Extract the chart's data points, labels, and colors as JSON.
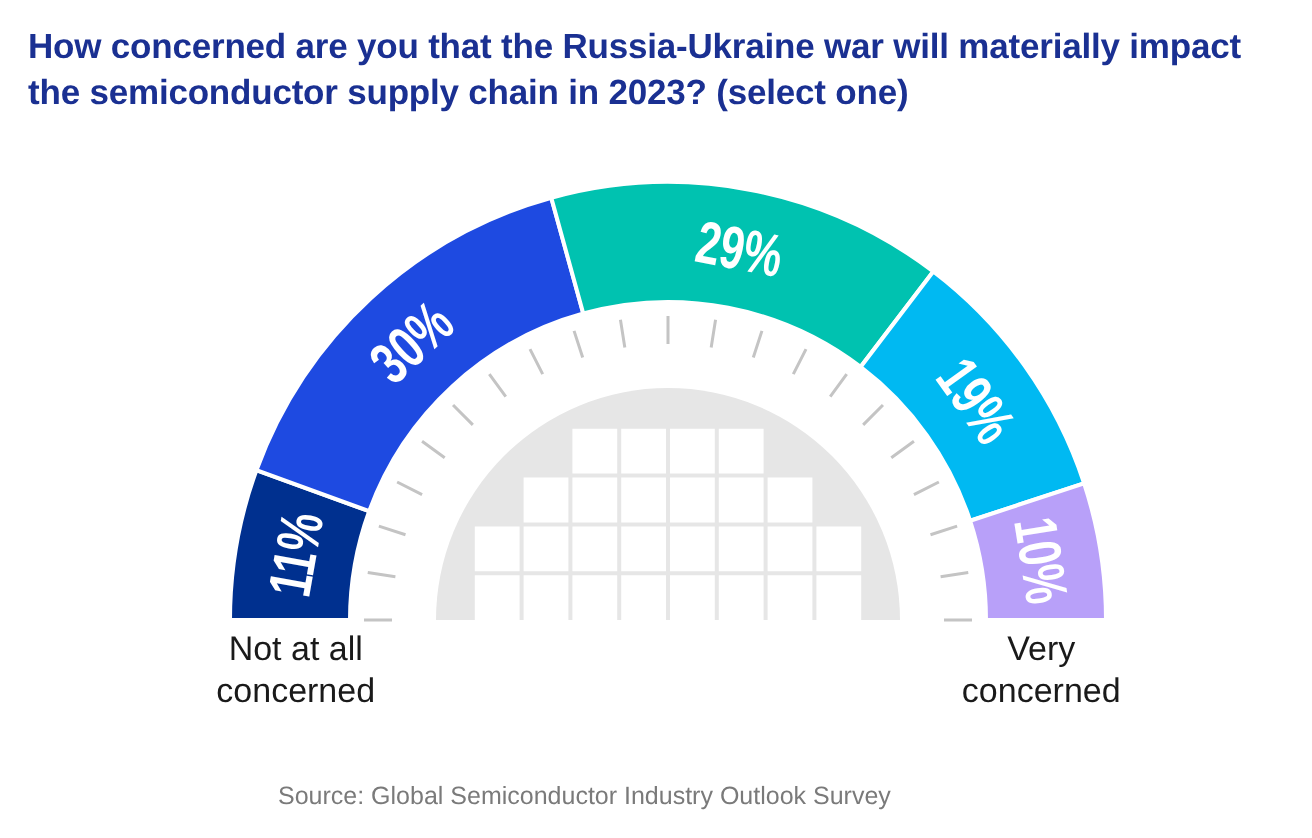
{
  "chart_data": {
    "type": "donut",
    "title": "How concerned are you that the Russia-Ukraine war will materially impact the semiconductor supply chain in 2023? (select one)",
    "categories": [
      "Not at all concerned",
      null,
      null,
      null,
      "Very concerned"
    ],
    "values": [
      11,
      30,
      29,
      19,
      10
    ],
    "colors": [
      "#00308f",
      "#1e4ae1",
      "#00c2b0",
      "#00b9f2",
      "#b8a0f9"
    ],
    "value_labels": [
      "11%",
      "30%",
      "29%",
      "19%",
      "10%"
    ],
    "annotations": [
      "Source: Global Semiconductor Industry Outlook Survey"
    ]
  }
}
